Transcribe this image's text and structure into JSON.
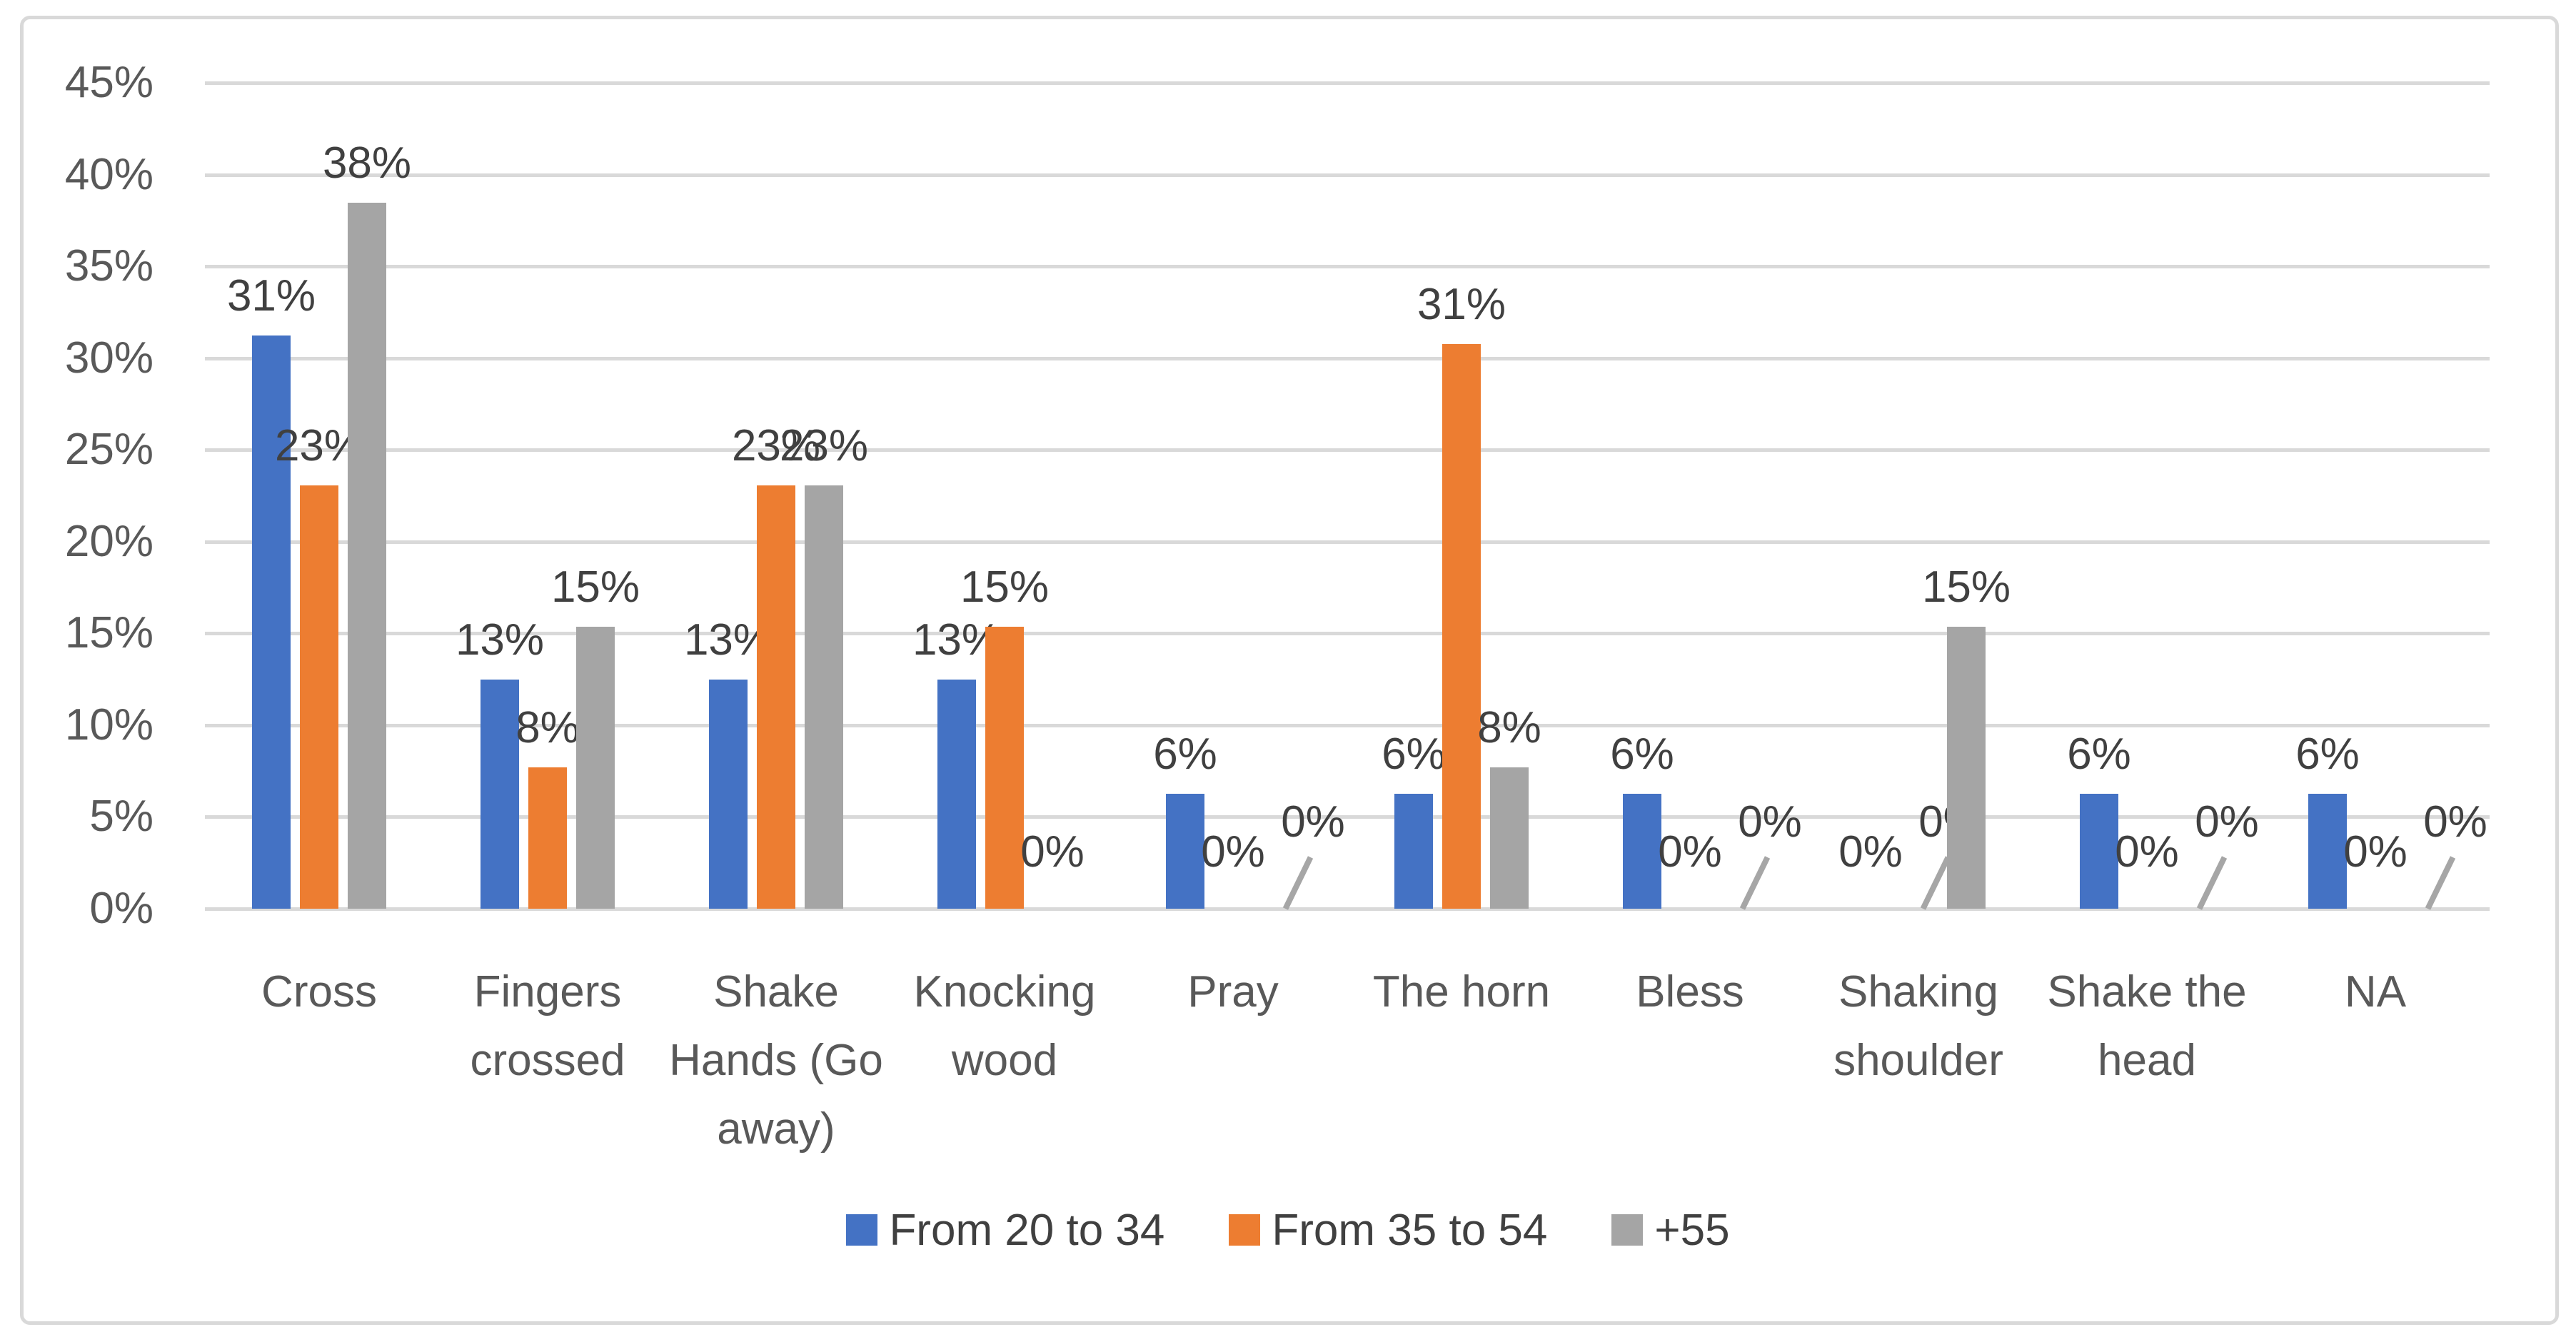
{
  "chart_data": {
    "type": "bar",
    "title": "",
    "xlabel": "",
    "ylabel": "",
    "categories": [
      "Cross",
      "Fingers crossed",
      "Shake Hands (Go away)",
      "Knocking wood",
      "Pray",
      "The horn",
      "Bless",
      "Shaking shoulder",
      "Shake the head",
      "NA"
    ],
    "category_lines": [
      [
        "Cross"
      ],
      [
        "Fingers",
        "crossed"
      ],
      [
        "Shake",
        "Hands (Go",
        "away)"
      ],
      [
        "Knocking",
        "wood"
      ],
      [
        "Pray"
      ],
      [
        "The horn"
      ],
      [
        "Bless"
      ],
      [
        "Shaking",
        "shoulder"
      ],
      [
        "Shake the",
        "head"
      ],
      [
        "NA"
      ]
    ],
    "series": [
      {
        "name": "From 20 to 34",
        "color": "#4472C4",
        "values": [
          31.25,
          12.5,
          12.5,
          12.5,
          6.25,
          6.25,
          6.25,
          0,
          6.25,
          6.25
        ],
        "labels": [
          "31%",
          "13%",
          "13%",
          "13%",
          "6%",
          "6%",
          "6%",
          "0%",
          "6%",
          "6%"
        ]
      },
      {
        "name": "From 35 to 54",
        "color": "#ED7D31",
        "values": [
          23.08,
          7.69,
          23.08,
          15.38,
          0,
          30.77,
          0,
          0,
          0,
          0
        ],
        "labels": [
          "23%",
          "8%",
          "23%",
          "15%",
          "0%",
          "31%",
          "0%",
          "0%",
          "0%",
          "0%"
        ]
      },
      {
        "name": "+55",
        "color": "#A5A5A5",
        "values": [
          38.46,
          15.38,
          23.08,
          0,
          0,
          7.69,
          0,
          15.38,
          0,
          0
        ],
        "labels": [
          "38%",
          "15%",
          "23%",
          "0%",
          "0%",
          "8%",
          "0%",
          "15%",
          "0%",
          "0%"
        ]
      }
    ],
    "raised_zero_labels": [
      [
        1,
        7
      ],
      [
        2,
        4
      ],
      [
        2,
        6
      ],
      [
        2,
        8
      ],
      [
        2,
        9
      ]
    ],
    "y_ticks": [
      "0%",
      "5%",
      "10%",
      "15%",
      "20%",
      "25%",
      "30%",
      "35%",
      "40%",
      "45%"
    ],
    "y_tick_values": [
      0,
      5,
      10,
      15,
      20,
      25,
      30,
      35,
      40,
      45
    ],
    "ylim": [
      0,
      45
    ],
    "grid": true,
    "legend_position": "bottom",
    "colors": {
      "gridline": "#D9D9D9",
      "axis_line": "#D9D9D9",
      "tick_text": "#595959",
      "label_text": "#404040",
      "category_text": "#595959",
      "leader_line": "#A6A6A6",
      "border": "#D9D9D9",
      "background": "#FFFFFF"
    }
  }
}
